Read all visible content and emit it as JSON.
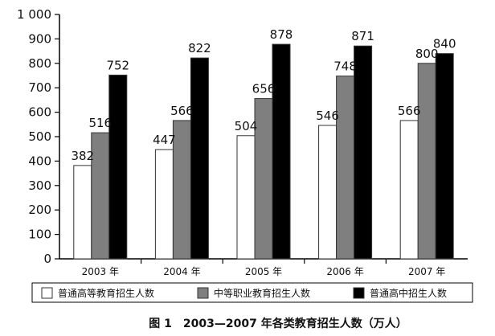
{
  "chart_data": {
    "type": "bar",
    "categories": [
      "2003 年",
      "2004 年",
      "2005 年",
      "2006 年",
      "2007 年"
    ],
    "series": [
      {
        "name": "普通高等教育招生人数",
        "values": [
          382,
          447,
          504,
          546,
          566
        ],
        "color": "#ffffff"
      },
      {
        "name": "中等职业教育招生人数",
        "values": [
          516,
          566,
          656,
          748,
          800
        ],
        "color": "#7f7f7f"
      },
      {
        "name": "普通高中招生人数",
        "values": [
          752,
          822,
          878,
          871,
          840
        ],
        "color": "#000000"
      }
    ],
    "y_ticks": [
      "0",
      "100",
      "200",
      "300",
      "400",
      "500",
      "600",
      "700",
      "800",
      "900",
      "1 000"
    ],
    "ylim": [
      0,
      1000
    ],
    "legend_position": "bottom",
    "grid": false
  },
  "caption": "图 1　2003—2007 年各类教育招生人数（万人）"
}
